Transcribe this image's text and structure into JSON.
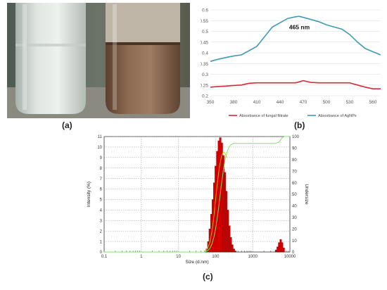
{
  "labels": {
    "a": "(a)",
    "b": "(b)",
    "c": "(c)"
  },
  "colors": {
    "fungal": "#d62a3a",
    "agnps": "#3f9bb3",
    "bar_fill": "#d40000",
    "cumulative": "#7de66a",
    "fit": "#c8c800"
  },
  "chart_data": [
    {
      "type": "line",
      "id": "uv-vis",
      "title": "",
      "xlabel": "",
      "ylabel": "",
      "x_ticks": [
        350,
        380,
        410,
        440,
        470,
        500,
        530,
        560
      ],
      "y_ticks": [
        0.2,
        0.25,
        0.3,
        0.35,
        0.4,
        0.45,
        0.5,
        0.55,
        0.6
      ],
      "y_tick_labels": [
        "0.2",
        "0.25",
        "0.3",
        "0.35",
        "0.4",
        "0.45",
        "0.5",
        "0.55",
        "0.6"
      ],
      "xlim": [
        350,
        570
      ],
      "ylim": [
        0.2,
        0.6
      ],
      "grid": "horizontal",
      "legend_position": "bottom",
      "annotation": "465 nm",
      "annotation_at": [
        465,
        0.51
      ],
      "series": [
        {
          "name": "Absorbance of fungal filtrate",
          "color_key": "fungal",
          "x": [
            350,
            360,
            370,
            380,
            390,
            400,
            410,
            420,
            430,
            440,
            450,
            460,
            465,
            470,
            480,
            490,
            500,
            510,
            520,
            530,
            540,
            550,
            560,
            570
          ],
          "y": [
            0.24,
            0.243,
            0.245,
            0.248,
            0.25,
            0.258,
            0.26,
            0.26,
            0.26,
            0.26,
            0.26,
            0.26,
            0.265,
            0.27,
            0.262,
            0.26,
            0.26,
            0.26,
            0.26,
            0.26,
            0.25,
            0.24,
            0.232,
            0.232
          ]
        },
        {
          "name": "Absorbance of AgNPs",
          "color_key": "agnps",
          "x": [
            350,
            360,
            370,
            380,
            390,
            400,
            410,
            420,
            430,
            440,
            450,
            460,
            465,
            470,
            480,
            490,
            500,
            510,
            520,
            530,
            540,
            550,
            560,
            570
          ],
          "y": [
            0.36,
            0.37,
            0.378,
            0.385,
            0.39,
            0.41,
            0.43,
            0.475,
            0.52,
            0.54,
            0.56,
            0.568,
            0.57,
            0.565,
            0.555,
            0.545,
            0.53,
            0.52,
            0.51,
            0.485,
            0.45,
            0.42,
            0.405,
            0.39
          ]
        }
      ]
    },
    {
      "type": "bar",
      "id": "dls-size",
      "title": "",
      "xlabel": "Size (d.nm)",
      "ylabel": "Intensity (%)",
      "y2label": "Undersize",
      "x_scale": "log",
      "x_ticks": [
        0.1,
        1,
        10,
        100,
        1000,
        10000
      ],
      "x_tick_labels": [
        "0.1",
        "1",
        "10",
        "100",
        "1000",
        "10000"
      ],
      "y_ticks": [
        0,
        1,
        2,
        3,
        4,
        5,
        6,
        7,
        8,
        9,
        10,
        11
      ],
      "y2_ticks": [
        0,
        10,
        20,
        30,
        40,
        50,
        60,
        70,
        80,
        90,
        100
      ],
      "xlim": [
        0.1,
        10000
      ],
      "ylim": [
        0,
        11
      ],
      "y2lim": [
        0,
        100
      ],
      "grid": "dotted",
      "bins": [
        {
          "x": 58,
          "y": 0.3
        },
        {
          "x": 64,
          "y": 1.0
        },
        {
          "x": 70,
          "y": 2.2
        },
        {
          "x": 77,
          "y": 3.6
        },
        {
          "x": 84,
          "y": 5.0
        },
        {
          "x": 92,
          "y": 6.6
        },
        {
          "x": 101,
          "y": 8.2
        },
        {
          "x": 111,
          "y": 9.6
        },
        {
          "x": 122,
          "y": 10.6
        },
        {
          "x": 134,
          "y": 10.9
        },
        {
          "x": 147,
          "y": 10.4
        },
        {
          "x": 161,
          "y": 9.2
        },
        {
          "x": 177,
          "y": 7.6
        },
        {
          "x": 194,
          "y": 5.8
        },
        {
          "x": 213,
          "y": 4.0
        },
        {
          "x": 234,
          "y": 2.5
        },
        {
          "x": 257,
          "y": 1.4
        },
        {
          "x": 282,
          "y": 0.7
        },
        {
          "x": 310,
          "y": 0.3
        },
        {
          "x": 340,
          "y": 0.1
        },
        {
          "x": 4300,
          "y": 0.2
        },
        {
          "x": 4700,
          "y": 0.5
        },
        {
          "x": 5150,
          "y": 0.9
        },
        {
          "x": 5650,
          "y": 1.2
        },
        {
          "x": 6200,
          "y": 0.9
        },
        {
          "x": 6800,
          "y": 0.4
        }
      ],
      "cumulative": {
        "x": [
          0.1,
          50,
          60,
          70,
          80,
          90,
          100,
          110,
          120,
          130,
          140,
          150,
          160,
          180,
          200,
          230,
          260,
          300,
          400,
          1000,
          4000,
          5000,
          5600,
          6200,
          7000,
          10000
        ],
        "y": [
          0,
          0,
          1,
          3,
          7,
          13,
          20,
          29,
          38,
          47,
          56,
          63,
          70,
          80,
          86,
          91,
          93,
          94,
          94,
          94,
          94,
          95,
          97,
          99,
          100,
          100
        ]
      },
      "fit": {
        "x": [
          50,
          60,
          70,
          80,
          90,
          100,
          110,
          120,
          130,
          140,
          150,
          160,
          170,
          180,
          200
        ],
        "y": [
          0,
          0.3,
          0.9,
          2.0,
          3.4,
          5.0,
          6.4,
          7.5,
          8.3,
          8.9,
          9.3,
          9.5,
          9.5,
          9.4,
          9.0
        ]
      }
    }
  ]
}
